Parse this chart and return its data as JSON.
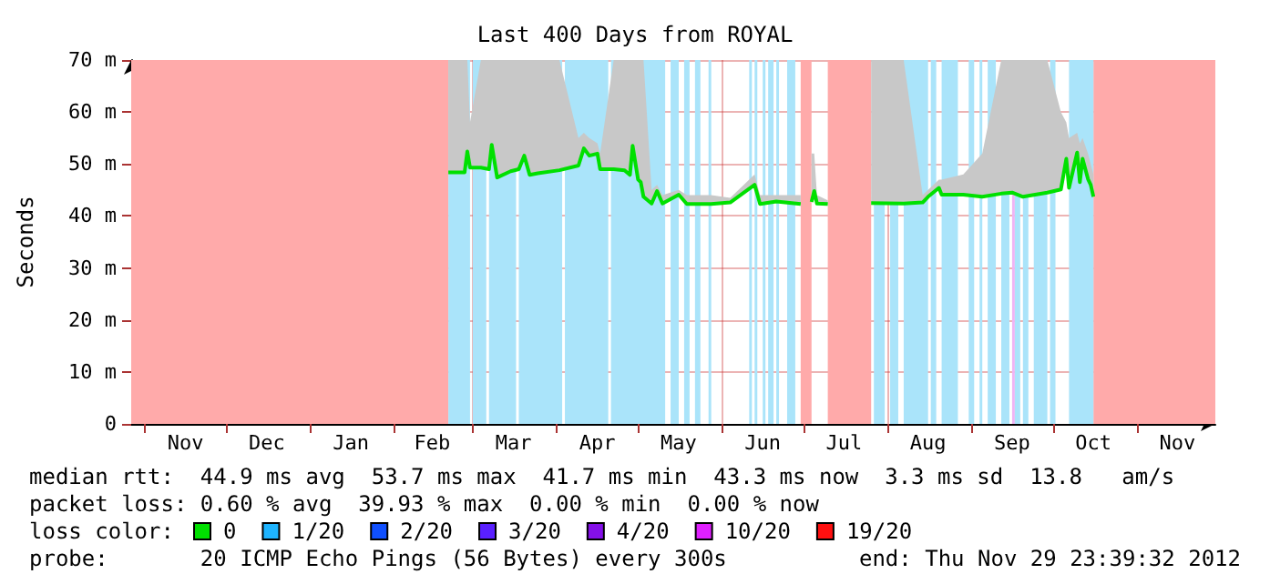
{
  "chart_data": {
    "type": "line",
    "title": "Last 400 Days from ROYAL",
    "ylabel": "Seconds",
    "legend_title": "loss color:",
    "legend": "bottom",
    "grid": true,
    "xlim": [
      "2011-10-26T23:39",
      "2012-11-29T23:39"
    ],
    "xticks": [
      {
        "value": "2011-11-01",
        "label": null
      },
      {
        "value": "2011-11-16",
        "label": "Nov"
      },
      {
        "value": "2011-12-01",
        "label": null
      },
      {
        "value": "2011-12-16",
        "label": "Dec"
      },
      {
        "value": "2012-01-01",
        "label": null
      },
      {
        "value": "2012-01-16",
        "label": "Jan"
      },
      {
        "value": "2012-02-01",
        "label": null
      },
      {
        "value": "2012-02-15",
        "label": "Feb"
      },
      {
        "value": "2012-03-01",
        "label": null
      },
      {
        "value": "2012-03-16",
        "label": "Mar"
      },
      {
        "value": "2012-04-01",
        "label": null
      },
      {
        "value": "2012-04-16",
        "label": "Apr"
      },
      {
        "value": "2012-05-01",
        "label": null
      },
      {
        "value": "2012-05-16",
        "label": "May"
      },
      {
        "value": "2012-06-01",
        "label": null
      },
      {
        "value": "2012-06-16",
        "label": "Jun"
      },
      {
        "value": "2012-07-01",
        "label": null
      },
      {
        "value": "2012-07-16",
        "label": "Jul"
      },
      {
        "value": "2012-08-01",
        "label": null
      },
      {
        "value": "2012-08-16",
        "label": "Aug"
      },
      {
        "value": "2012-09-01",
        "label": null
      },
      {
        "value": "2012-09-16",
        "label": "Sep"
      },
      {
        "value": "2012-10-01",
        "label": null
      },
      {
        "value": "2012-10-16",
        "label": "Oct"
      },
      {
        "value": "2012-11-01",
        "label": null
      },
      {
        "value": "2012-11-16",
        "label": "Nov"
      }
    ],
    "ylim": [
      0,
      70
    ],
    "yticks": [
      0,
      {
        "value": 10,
        "label": "10 m"
      },
      {
        "value": 20,
        "label": "20 m"
      },
      {
        "value": 30,
        "label": "30 m"
      },
      {
        "value": 40,
        "label": "40 m"
      },
      {
        "value": 50,
        "label": "50 m"
      },
      {
        "value": 60,
        "label": "60 m"
      },
      {
        "value": 70,
        "label": "70 m"
      }
    ],
    "x": [
      "2012-02-21",
      "2012-02-27",
      "2012-02-28",
      "2012-02-29",
      "2012-03-04",
      "2012-03-07",
      "2012-03-08",
      "2012-03-10",
      "2012-03-15",
      "2012-03-18",
      "2012-03-20",
      "2012-03-22",
      "2012-03-25",
      "2012-04-02",
      "2012-04-09",
      "2012-04-11",
      "2012-04-13",
      "2012-04-16",
      "2012-04-17",
      "2012-04-22",
      "2012-04-26",
      "2012-04-28",
      "2012-04-29",
      "2012-05-01",
      "2012-05-02",
      "2012-05-03",
      "2012-05-06",
      "2012-05-08",
      "2012-05-10",
      "2012-05-16",
      "2012-05-19",
      "2012-05-28",
      "2012-06-04",
      "2012-06-13",
      "2012-06-15",
      "2012-06-21",
      "2012-06-30",
      "2012-07-02",
      "2012-07-04",
      "2012-07-05",
      "2012-07-06",
      "2012-07-10",
      "2012-07-18",
      "2012-07-26",
      "2012-08-07",
      "2012-08-14",
      "2012-08-16",
      "2012-08-20",
      "2012-08-21",
      "2012-08-29",
      "2012-09-05",
      "2012-09-12",
      "2012-09-16",
      "2012-09-20",
      "2012-09-29",
      "2012-10-04",
      "2012-10-06",
      "2012-10-07",
      "2012-10-10",
      "2012-10-11",
      "2012-10-12",
      "2012-10-14",
      "2012-10-15",
      "2012-10-16"
    ],
    "series": [
      {
        "name": "0",
        "color": "#00e000",
        "values": [
          48.4,
          48.4,
          52.4,
          49.3,
          49.3,
          49,
          53.7,
          47.4,
          48.6,
          49,
          51.6,
          47.9,
          48.2,
          48.8,
          49.7,
          53,
          51.6,
          52,
          49,
          49,
          48.8,
          47.9,
          53.5,
          47,
          46.5,
          43.7,
          42.4,
          44.8,
          42.4,
          44.1,
          42.3,
          42.3,
          42.6,
          46,
          42.3,
          42.8,
          42.3,
          null,
          42.7,
          44.8,
          42.4,
          42.3,
          null,
          42.5,
          42.4,
          42.6,
          43.7,
          45.4,
          44.1,
          44.1,
          43.7,
          44.3,
          44.5,
          43.7,
          44.5,
          45.1,
          51,
          45.4,
          52.2,
          46.5,
          51,
          47.1,
          46,
          43.7
        ],
        "lower": [
          48.4,
          48.4,
          52.4,
          49.3,
          49.3,
          49,
          53.7,
          47.4,
          48.6,
          49,
          51.6,
          47.9,
          48.2,
          48.8,
          49.7,
          53,
          51.6,
          52,
          49,
          49,
          48.8,
          47.9,
          53.5,
          47,
          46.5,
          43.7,
          42.4,
          44.8,
          42.4,
          44.1,
          42.3,
          42.3,
          42.6,
          46,
          42.3,
          42.8,
          42.3,
          null,
          42.7,
          44.8,
          42.4,
          42.3,
          null,
          42.5,
          42.4,
          42.6,
          43.7,
          45.4,
          44.1,
          44.1,
          43.7,
          44.3,
          44.5,
          43.7,
          44.5,
          45.1,
          51,
          45.4,
          52.2,
          46.5,
          51,
          47.1,
          46,
          43.7
        ],
        "upper": [
          70,
          70,
          70,
          58,
          70,
          70,
          70,
          70,
          70,
          70,
          70,
          70,
          70,
          70,
          55,
          56,
          55,
          54,
          52,
          70,
          70,
          70,
          70,
          70,
          70,
          70,
          45,
          46,
          44,
          45,
          44,
          44,
          43.5,
          48,
          44,
          44,
          44,
          null,
          52,
          52,
          44,
          43,
          null,
          70,
          70,
          44,
          45,
          47,
          47,
          48,
          52,
          70,
          70,
          70,
          70,
          60,
          58,
          55,
          56,
          54,
          55,
          52,
          50,
          48
        ]
      },
      {
        "name": "1/20",
        "color": "#1eb4ff",
        "values": [
          null,
          null,
          null,
          null,
          null,
          null,
          null,
          null,
          null,
          null,
          null,
          null,
          null,
          null,
          null,
          null,
          null,
          null,
          null,
          null,
          null,
          null,
          null,
          null,
          null,
          null,
          null,
          null,
          null,
          null,
          null,
          null,
          null,
          null,
          null,
          null,
          null,
          null,
          null,
          null,
          null,
          null,
          null,
          null,
          null,
          null,
          null,
          null,
          null,
          null,
          null,
          null,
          null,
          null,
          null,
          null,
          null,
          null,
          null,
          null,
          null,
          null,
          null,
          null
        ]
      },
      {
        "name": "2/20",
        "color": "#1050ff",
        "values": [
          null,
          null,
          null,
          null,
          null,
          null,
          null,
          null,
          null,
          null,
          null,
          null,
          null,
          null,
          null,
          null,
          null,
          null,
          null,
          null,
          null,
          null,
          null,
          null,
          null,
          null,
          null,
          null,
          null,
          null,
          null,
          null,
          null,
          null,
          null,
          null,
          null,
          null,
          null,
          null,
          null,
          null,
          null,
          null,
          null,
          null,
          null,
          null,
          null,
          null,
          null,
          null,
          null,
          null,
          null,
          null,
          null,
          null,
          null,
          null,
          null,
          null,
          null,
          null
        ]
      },
      {
        "name": "3/20",
        "color": "#5a20ff",
        "values": [
          null,
          null,
          null,
          null,
          null,
          null,
          null,
          null,
          null,
          null,
          null,
          null,
          null,
          null,
          null,
          null,
          null,
          null,
          null,
          null,
          null,
          null,
          null,
          null,
          null,
          null,
          null,
          null,
          null,
          null,
          null,
          null,
          null,
          null,
          null,
          null,
          null,
          null,
          null,
          null,
          null,
          null,
          null,
          null,
          null,
          null,
          null,
          null,
          null,
          null,
          null,
          null,
          null,
          null,
          null,
          null,
          null,
          null,
          null,
          null,
          null,
          null,
          null,
          null
        ]
      },
      {
        "name": "4/20",
        "color": "#8410e8",
        "values": [
          null,
          null,
          null,
          null,
          null,
          null,
          null,
          null,
          null,
          null,
          null,
          null,
          null,
          null,
          null,
          null,
          null,
          null,
          null,
          null,
          null,
          null,
          null,
          null,
          null,
          null,
          null,
          null,
          null,
          null,
          null,
          null,
          null,
          null,
          null,
          null,
          null,
          null,
          null,
          null,
          null,
          null,
          null,
          null,
          null,
          null,
          null,
          null,
          null,
          null,
          null,
          null,
          null,
          null,
          null,
          null,
          null,
          null,
          null,
          null,
          null,
          null,
          null,
          null
        ]
      },
      {
        "name": "10/20",
        "color": "#e020ff",
        "values": [
          null,
          null,
          null,
          null,
          null,
          null,
          null,
          null,
          null,
          null,
          null,
          null,
          null,
          null,
          null,
          null,
          null,
          null,
          null,
          null,
          null,
          null,
          null,
          null,
          null,
          null,
          null,
          null,
          null,
          null,
          null,
          null,
          null,
          null,
          null,
          null,
          null,
          null,
          null,
          null,
          null,
          null,
          null,
          null,
          null,
          null,
          null,
          null,
          null,
          null,
          null,
          null,
          null,
          null,
          null,
          null,
          null,
          null,
          null,
          null,
          null,
          null,
          null,
          null
        ]
      },
      {
        "name": "19/20",
        "color": "#ff1010",
        "values": [
          null,
          null,
          null,
          null,
          null,
          null,
          null,
          null,
          null,
          null,
          null,
          null,
          null,
          null,
          null,
          null,
          null,
          null,
          null,
          null,
          null,
          null,
          null,
          null,
          null,
          null,
          null,
          null,
          null,
          null,
          null,
          null,
          null,
          null,
          null,
          null,
          null,
          null,
          null,
          null,
          null,
          null,
          null,
          null,
          null,
          null,
          null,
          null,
          null,
          null,
          null,
          null,
          null,
          null,
          null,
          null,
          null,
          null,
          null,
          null,
          null,
          null,
          null,
          null
        ]
      }
    ],
    "bands": [
      {
        "axis": "x",
        "from": "2011-10-26T23:39",
        "to": "2012-02-21",
        "color": "#ffaaaa"
      },
      {
        "axis": "x",
        "from": "2012-06-30",
        "to": "2012-07-04",
        "color": "#ffaaaa"
      },
      {
        "axis": "x",
        "from": "2012-07-10",
        "to": "2012-07-26",
        "color": "#ffaaaa"
      },
      {
        "axis": "x",
        "from": "2012-10-16",
        "to": "2012-11-29T23:39",
        "color": "#ffaaaa"
      },
      {
        "axis": "x",
        "from": "2012-02-21",
        "to": "2012-02-29",
        "color": "#aae4fa"
      },
      {
        "axis": "x",
        "from": "2012-03-01",
        "to": "2012-03-06",
        "color": "#aae4fa"
      },
      {
        "axis": "x",
        "from": "2012-03-07",
        "to": "2012-03-17",
        "color": "#aae4fa"
      },
      {
        "axis": "x",
        "from": "2012-03-18",
        "to": "2012-04-03",
        "color": "#aae4fa"
      },
      {
        "axis": "x",
        "from": "2012-04-04",
        "to": "2012-04-20",
        "color": "#aae4fa"
      },
      {
        "axis": "x",
        "from": "2012-04-21",
        "to": "2012-05-11",
        "color": "#aae4fa"
      },
      {
        "axis": "x",
        "from": "2012-05-13",
        "to": "2012-05-16",
        "color": "#aae4fa"
      },
      {
        "axis": "x",
        "from": "2012-05-18",
        "to": "2012-05-20",
        "color": "#aae4fa"
      },
      {
        "axis": "x",
        "from": "2012-05-22",
        "to": "2012-05-24",
        "color": "#aae4fa"
      },
      {
        "axis": "x",
        "from": "2012-05-27",
        "to": "2012-05-28",
        "color": "#aae4fa"
      },
      {
        "axis": "x",
        "from": "2012-06-11",
        "to": "2012-06-12",
        "color": "#aae4fa"
      },
      {
        "axis": "x",
        "from": "2012-06-13",
        "to": "2012-06-14",
        "color": "#aae4fa"
      },
      {
        "axis": "x",
        "from": "2012-06-16",
        "to": "2012-06-17",
        "color": "#aae4fa"
      },
      {
        "axis": "x",
        "from": "2012-06-18",
        "to": "2012-06-20",
        "color": "#aae4fa"
      },
      {
        "axis": "x",
        "from": "2012-06-21",
        "to": "2012-06-22",
        "color": "#aae4fa"
      },
      {
        "axis": "x",
        "from": "2012-06-25",
        "to": "2012-06-28",
        "color": "#aae4fa"
      },
      {
        "axis": "x",
        "from": "2012-07-27",
        "to": "2012-07-31",
        "color": "#aae4fa"
      },
      {
        "axis": "x",
        "from": "2012-08-02",
        "to": "2012-08-05",
        "color": "#aae4fa"
      },
      {
        "axis": "x",
        "from": "2012-08-07",
        "to": "2012-08-16",
        "color": "#aae4fa"
      },
      {
        "axis": "x",
        "from": "2012-08-17",
        "to": "2012-08-19",
        "color": "#aae4fa"
      },
      {
        "axis": "x",
        "from": "2012-08-21",
        "to": "2012-08-27",
        "color": "#aae4fa"
      },
      {
        "axis": "x",
        "from": "2012-08-31",
        "to": "2012-09-02",
        "color": "#aae4fa"
      },
      {
        "axis": "x",
        "from": "2012-09-04",
        "to": "2012-09-05",
        "color": "#aae4fa"
      },
      {
        "axis": "x",
        "from": "2012-09-07",
        "to": "2012-09-10",
        "color": "#aae4fa"
      },
      {
        "axis": "x",
        "from": "2012-09-12",
        "to": "2012-09-15",
        "color": "#aae4fa"
      },
      {
        "axis": "x",
        "from": "2012-09-16",
        "to": "2012-09-17",
        "color": "#f0b4f4"
      },
      {
        "axis": "x",
        "from": "2012-09-17",
        "to": "2012-09-19",
        "color": "#aae4fa"
      },
      {
        "axis": "x",
        "from": "2012-09-20",
        "to": "2012-09-22",
        "color": "#aae4fa"
      },
      {
        "axis": "x",
        "from": "2012-09-24",
        "to": "2012-09-29",
        "color": "#aae4fa"
      },
      {
        "axis": "x",
        "from": "2012-09-30",
        "to": "2012-10-02",
        "color": "#aae4fa"
      },
      {
        "axis": "x",
        "from": "2012-10-07",
        "to": "2012-10-16",
        "color": "#aae4fa"
      }
    ],
    "annotations": [
      "median rtt:  44.9 ms avg  53.7 ms max  41.7 ms min  43.3 ms now  3.3 ms sd  13.8   am/s",
      "packet loss: 0.60 % avg  39.93 % max  0.00 % min  0.00 % now",
      "probe:       20 ICMP Echo Pings (56 Bytes) every 300s",
      "end: Thu Nov 29 23:39:32 2012"
    ]
  }
}
